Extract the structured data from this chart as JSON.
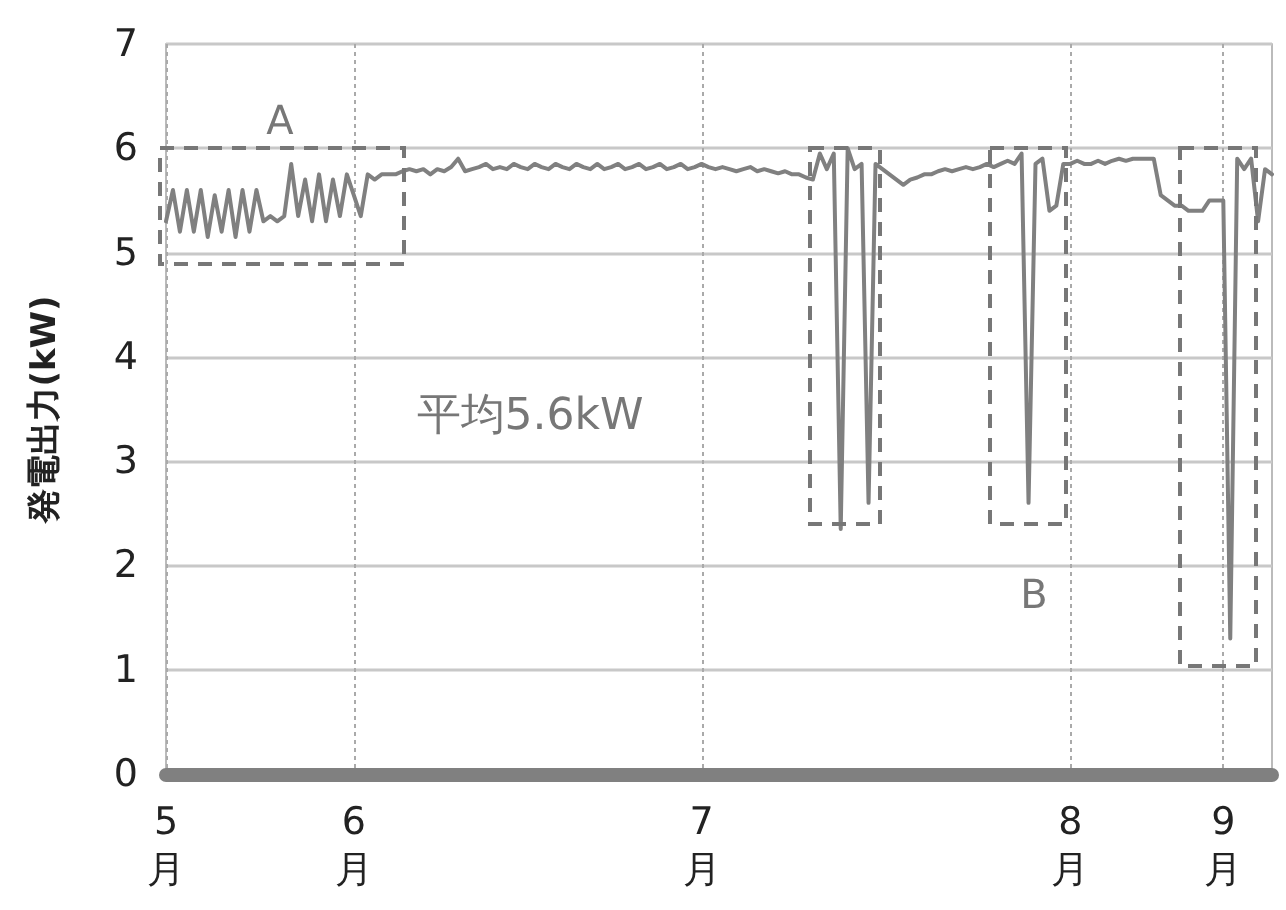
{
  "chart_data": {
    "type": "line",
    "ylabel": "発電出力(kW)",
    "categories": [
      "5\n月",
      null,
      null,
      null,
      null,
      null,
      null,
      null,
      null,
      null,
      null,
      null,
      null,
      null,
      null,
      null,
      null,
      null,
      null,
      null,
      null,
      null,
      null,
      null,
      null,
      null,
      null,
      "6\n月",
      null,
      null,
      null,
      null,
      null,
      null,
      null,
      null,
      null,
      null,
      null,
      null,
      null,
      null,
      null,
      null,
      null,
      null,
      null,
      null,
      null,
      null,
      null,
      null,
      null,
      null,
      null,
      null,
      null,
      null,
      null,
      null,
      null,
      null,
      null,
      null,
      null,
      null,
      null,
      null,
      null,
      null,
      null,
      null,
      null,
      null,
      null,
      null,
      null,
      "7\n月",
      null,
      null,
      null,
      null,
      null,
      null,
      null,
      null,
      null,
      null,
      null,
      null,
      null,
      null,
      null,
      null,
      null,
      null,
      null,
      null,
      null,
      null,
      null,
      null,
      null,
      null,
      null,
      null,
      null,
      null,
      null,
      null,
      null,
      null,
      null,
      null,
      null,
      null,
      null,
      null,
      null,
      null,
      null,
      null,
      null,
      null,
      null,
      null,
      null,
      null,
      null,
      null,
      "8\n月",
      null,
      null,
      null,
      null,
      null,
      null,
      null,
      null,
      null,
      null,
      null,
      null,
      null,
      null,
      null,
      null,
      null,
      null,
      null,
      null,
      null,
      "9\n月",
      null,
      null,
      null,
      null,
      null,
      null,
      null
    ],
    "ylim": [
      0,
      7
    ],
    "yticks": [
      0,
      1,
      2,
      3,
      4,
      5,
      6,
      7
    ],
    "grid": true,
    "series": [
      {
        "color": "#808080",
        "values": [
          5.3,
          5.6,
          5.2,
          5.6,
          5.2,
          5.6,
          5.15,
          5.55,
          5.2,
          5.6,
          5.15,
          5.6,
          5.2,
          5.6,
          5.3,
          5.35,
          5.3,
          5.35,
          5.85,
          5.35,
          5.7,
          5.3,
          5.75,
          5.3,
          5.7,
          5.35,
          5.75,
          5.55,
          5.35,
          5.75,
          5.7,
          5.75,
          5.75,
          5.75,
          5.78,
          5.8,
          5.78,
          5.8,
          5.75,
          5.8,
          5.78,
          5.82,
          5.9,
          5.78,
          5.8,
          5.82,
          5.85,
          5.8,
          5.82,
          5.8,
          5.85,
          5.82,
          5.8,
          5.85,
          5.82,
          5.8,
          5.85,
          5.82,
          5.8,
          5.85,
          5.82,
          5.8,
          5.85,
          5.8,
          5.82,
          5.85,
          5.8,
          5.82,
          5.85,
          5.8,
          5.82,
          5.85,
          5.8,
          5.82,
          5.85,
          5.8,
          5.82,
          5.85,
          5.82,
          5.8,
          5.82,
          5.8,
          5.78,
          5.8,
          5.82,
          5.78,
          5.8,
          5.78,
          5.76,
          5.78,
          5.75,
          5.75,
          5.72,
          5.7,
          5.95,
          5.8,
          5.95,
          2.35,
          6.0,
          5.8,
          5.85,
          2.6,
          5.85,
          5.8,
          5.75,
          5.7,
          5.65,
          5.7,
          5.72,
          5.75,
          5.75,
          5.78,
          5.8,
          5.78,
          5.8,
          5.82,
          5.8,
          5.82,
          5.85,
          5.82,
          5.85,
          5.88,
          5.85,
          5.95,
          2.6,
          5.85,
          5.9,
          5.4,
          5.45,
          5.85,
          5.85,
          5.88,
          5.85,
          5.85,
          5.88,
          5.85,
          5.88,
          5.9,
          5.88,
          5.9,
          5.9,
          5.9,
          5.9,
          5.55,
          5.5,
          5.45,
          5.45,
          5.4,
          5.4,
          5.4,
          5.5,
          5.5,
          5.5,
          1.3,
          5.9,
          5.8,
          5.9,
          5.3,
          5.8,
          5.75
        ]
      }
    ],
    "annotations": [
      "A",
      "B",
      "平均5.6kW"
    ],
    "marker": "none",
    "line_style": "solid"
  }
}
